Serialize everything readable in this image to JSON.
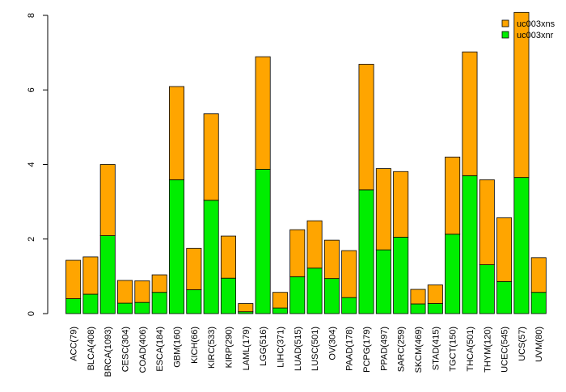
{
  "chart_data": {
    "type": "bar",
    "stacked": true,
    "title": "",
    "xlabel": "",
    "ylabel": "",
    "ylim": [
      0,
      8
    ],
    "yticks": [
      "0",
      "2",
      "4",
      "6",
      "8"
    ],
    "categories": [
      "ACC(79)",
      "BLCA(408)",
      "BRCA(1093)",
      "CESC(304)",
      "COAD(406)",
      "ESCA(184)",
      "GBM(160)",
      "KICH(66)",
      "KIRC(533)",
      "KIRP(290)",
      "LAML(179)",
      "LGG(516)",
      "LIHC(371)",
      "LUAD(515)",
      "LUSC(501)",
      "OV(304)",
      "PAAD(178)",
      "PCPG(179)",
      "PPAD(497)",
      "SARC(259)",
      "SKCM(469)",
      "STAD(415)",
      "TGCT(150)",
      "THCA(501)",
      "THYM(120)",
      "UCEC(545)",
      "UCS(57)",
      "UVM(80)"
    ],
    "series": [
      {
        "name": "uc003xnr",
        "color": "#00ee00",
        "values": [
          0.4,
          0.52,
          2.09,
          0.28,
          0.3,
          0.57,
          3.59,
          0.64,
          3.04,
          0.95,
          0.05,
          3.87,
          0.15,
          0.99,
          1.22,
          0.94,
          0.43,
          3.32,
          1.71,
          2.05,
          0.26,
          0.27,
          2.13,
          3.7,
          1.31,
          0.86,
          3.65,
          0.57
        ]
      },
      {
        "name": "uc003xns",
        "color": "#ffa500",
        "values": [
          1.03,
          1.0,
          1.91,
          0.61,
          0.58,
          0.47,
          2.5,
          1.11,
          2.32,
          1.13,
          0.22,
          3.02,
          0.42,
          1.26,
          1.27,
          1.03,
          1.26,
          3.37,
          2.18,
          1.76,
          0.39,
          0.5,
          2.07,
          3.32,
          2.28,
          1.71,
          4.43,
          0.93
        ]
      }
    ],
    "legend": {
      "position": "top-right",
      "entries": [
        {
          "label": "uc003xns",
          "color": "#ffa500"
        },
        {
          "label": "uc003xnr",
          "color": "#00ee00"
        }
      ]
    },
    "grid": false
  }
}
